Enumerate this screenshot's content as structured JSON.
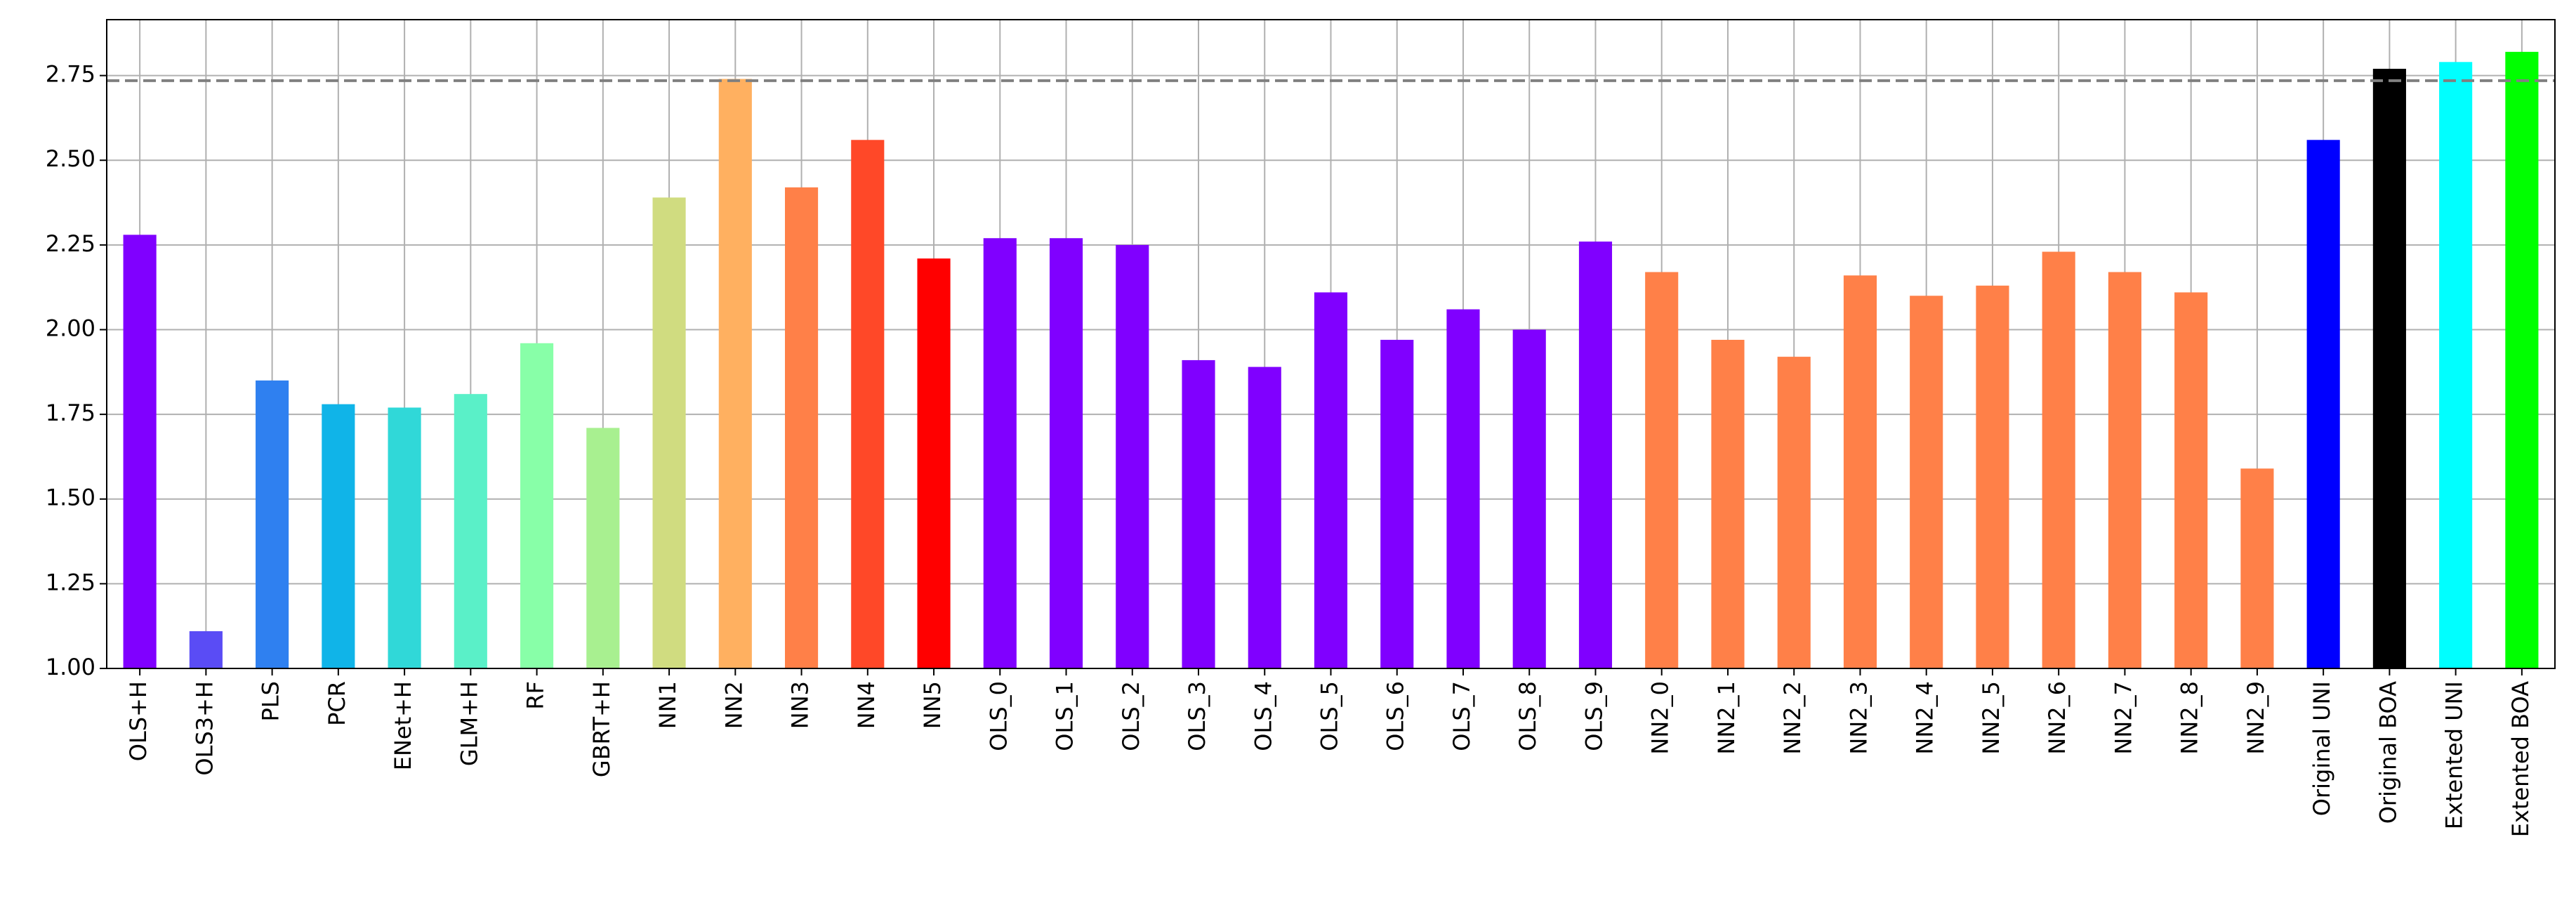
{
  "chart_data": {
    "type": "bar",
    "categories": [
      "OLS+H",
      "OLS3+H",
      "PLS",
      "PCR",
      "ENet+H",
      "GLM+H",
      "RF",
      "GBRT+H",
      "NN1",
      "NN2",
      "NN3",
      "NN4",
      "NN5",
      "OLS_0",
      "OLS_1",
      "OLS_2",
      "OLS_3",
      "OLS_4",
      "OLS_5",
      "OLS_6",
      "OLS_7",
      "OLS_8",
      "OLS_9",
      "NN2_0",
      "NN2_1",
      "NN2_2",
      "NN2_3",
      "NN2_4",
      "NN2_5",
      "NN2_6",
      "NN2_7",
      "NN2_8",
      "NN2_9",
      "Original UNI",
      "Original BOA",
      "Extented UNI",
      "Extented BOA"
    ],
    "values": [
      2.28,
      1.11,
      1.85,
      1.78,
      1.77,
      1.81,
      1.96,
      1.71,
      2.39,
      2.74,
      2.42,
      2.56,
      2.21,
      2.27,
      2.27,
      2.25,
      1.91,
      1.89,
      2.11,
      1.97,
      2.06,
      2.0,
      2.26,
      2.17,
      1.97,
      1.92,
      2.16,
      2.1,
      2.13,
      2.23,
      2.17,
      2.11,
      1.59,
      2.56,
      2.77,
      2.79,
      2.82
    ],
    "colors": [
      "#8000ff",
      "#5a4cf5",
      "#2f80f0",
      "#10b4e8",
      "#30d8d8",
      "#5af0c8",
      "#88ffa8",
      "#a8f090",
      "#d0dc80",
      "#ffb060",
      "#ff8048",
      "#ff4828",
      "#ff0000",
      "#8000ff",
      "#8000ff",
      "#8000ff",
      "#8000ff",
      "#8000ff",
      "#8000ff",
      "#8000ff",
      "#8000ff",
      "#8000ff",
      "#8000ff",
      "#ff8048",
      "#ff8048",
      "#ff8048",
      "#ff8048",
      "#ff8048",
      "#ff8048",
      "#ff8048",
      "#ff8048",
      "#ff8048",
      "#ff8048",
      "#0000ff",
      "#000000",
      "#00ffff",
      "#00ff00"
    ],
    "ylim": [
      1.0,
      2.915
    ],
    "yticks": [
      {
        "value": 1.0,
        "label": "1.00"
      },
      1.25,
      {
        "value": 1.5,
        "label": "1.50"
      },
      1.75,
      {
        "value": 2.0,
        "label": "2.00"
      },
      2.25,
      {
        "value": 2.5,
        "label": "2.50"
      },
      2.75
    ],
    "reference_line": 2.735,
    "grid": true
  }
}
